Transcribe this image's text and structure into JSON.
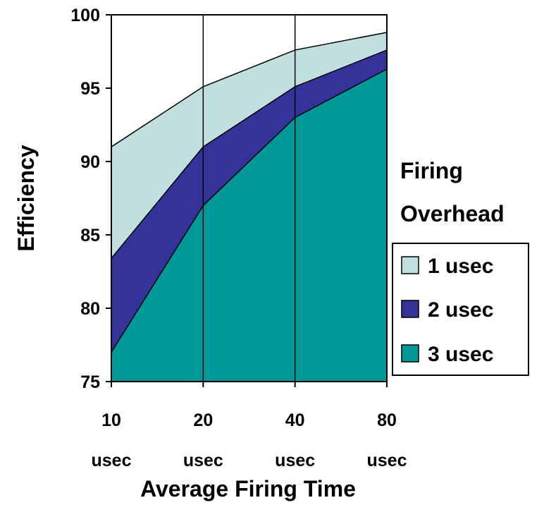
{
  "chart_data": {
    "type": "area",
    "stacked": false,
    "x_categories": [
      [
        "10",
        "usec"
      ],
      [
        "20",
        "usec"
      ],
      [
        "40",
        "usec"
      ],
      [
        "80",
        "usec"
      ]
    ],
    "series": [
      {
        "name": "1 usec",
        "values": [
          91.0,
          95.1,
          97.6,
          98.8
        ],
        "color": "#c0e0e0"
      },
      {
        "name": "2 usec",
        "values": [
          83.4,
          91.0,
          95.1,
          97.6
        ],
        "color": "#333399"
      },
      {
        "name": "3 usec",
        "values": [
          77.0,
          87.0,
          93.0,
          96.3
        ],
        "color": "#009999"
      }
    ],
    "xlabel": "Average Firing Time",
    "ylabel": "Efficiency",
    "ylim": [
      75,
      100
    ],
    "y_ticks": [
      75,
      80,
      85,
      90,
      95,
      100
    ],
    "grid": "vertical",
    "legend": {
      "title": [
        "Firing",
        "Overhead"
      ],
      "placement": "right"
    }
  }
}
